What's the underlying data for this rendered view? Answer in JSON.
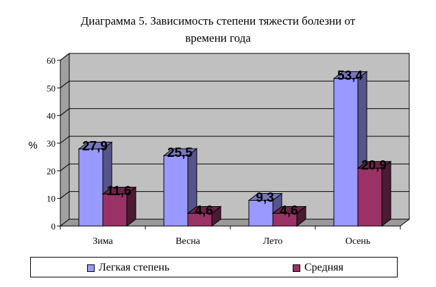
{
  "chart_data": {
    "type": "bar",
    "title_line1": "Диаграмма 5. Зависимость степени тяжести болезни от",
    "title_line2": "времени года",
    "ylabel": "%",
    "ylim": [
      0,
      60
    ],
    "yticks": [
      "0",
      "10",
      "20",
      "30",
      "40",
      "50",
      "60"
    ],
    "categories": [
      "Зима",
      "Весна",
      "Лето",
      "Осень"
    ],
    "series": [
      {
        "name": "Легкая степень",
        "values": [
          27.9,
          25.5,
          9.3,
          53.4
        ],
        "labels": [
          "27,9",
          "25,5",
          "9,3",
          "53,4"
        ],
        "color": "#9999FF",
        "side_color": "#55558A",
        "top_color": "#7777C0"
      },
      {
        "name": "Средняя",
        "values": [
          11.6,
          4.6,
          4.6,
          20.9
        ],
        "labels": [
          "11,6",
          "4,6",
          "4,6",
          "20,9"
        ],
        "color": "#993366",
        "side_color": "#4D1A33",
        "top_color": "#6E2449"
      }
    ],
    "grid": true,
    "legend_position": "bottom",
    "plot_background": "#C0C0C0"
  }
}
